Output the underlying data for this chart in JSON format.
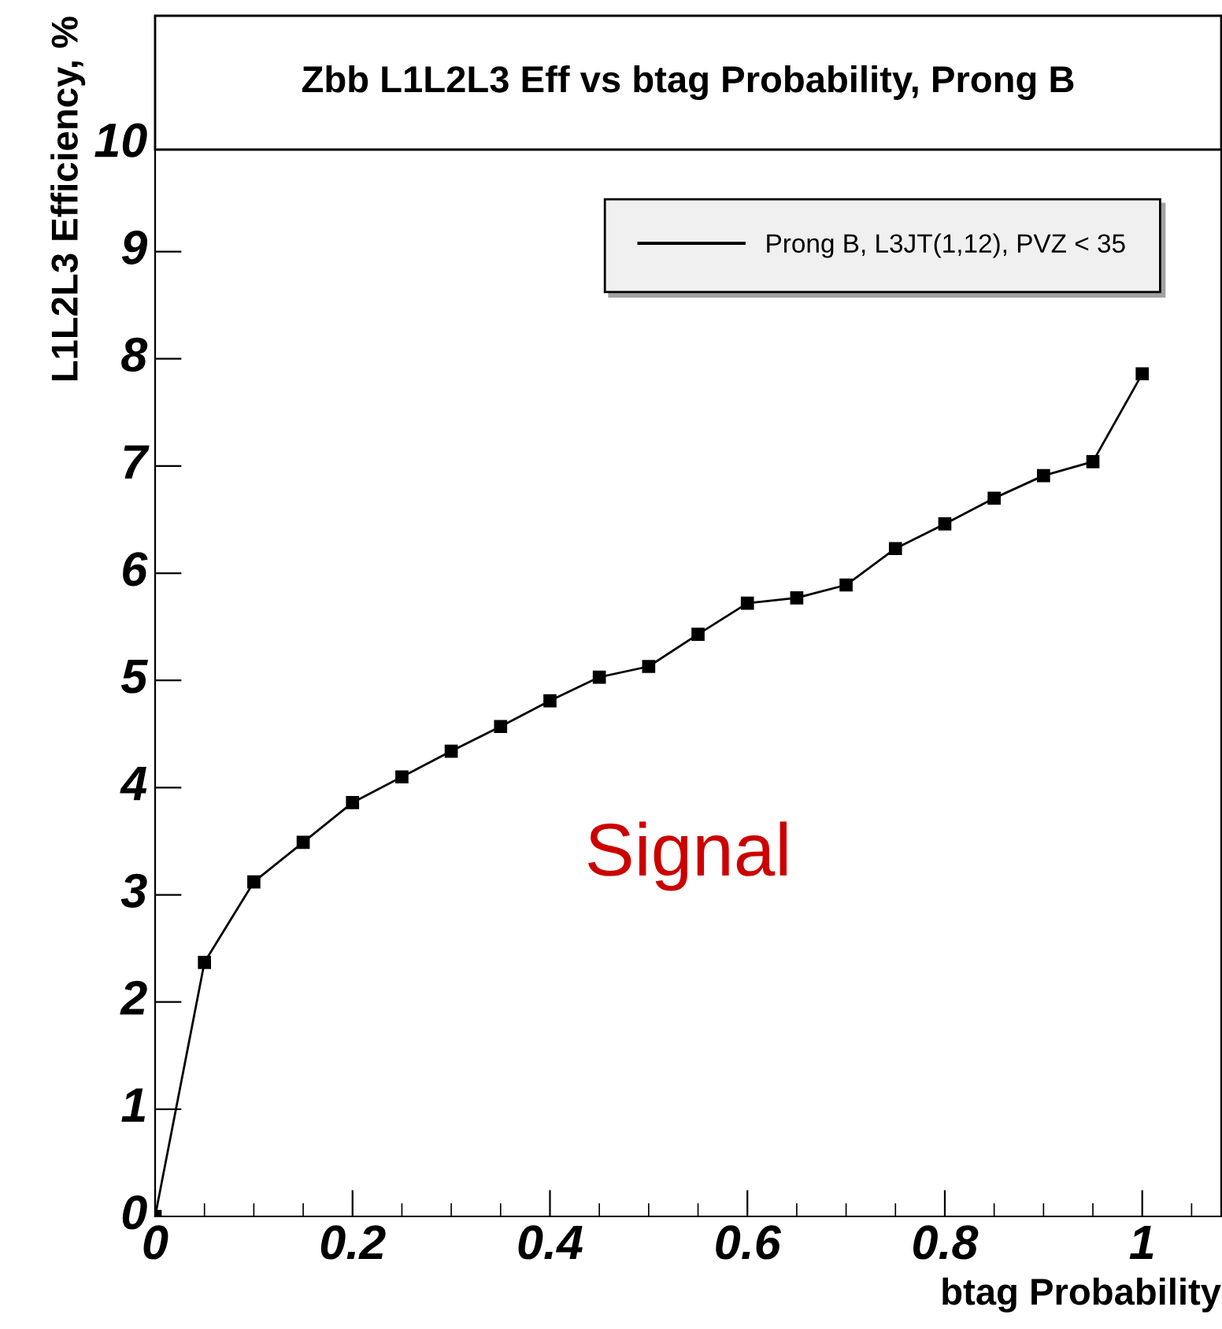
{
  "chart_data": {
    "type": "line",
    "title": "Zbb L1L2L3 Eff vs btag Probability, Prong B",
    "xlabel": "btag Probability",
    "ylabel": "L1L2L3 Efficiency, %",
    "x": [
      0,
      0.05,
      0.1,
      0.15,
      0.2,
      0.25,
      0.3,
      0.35,
      0.4,
      0.45,
      0.5,
      0.55,
      0.6,
      0.65,
      0.7,
      0.75,
      0.8,
      0.85,
      0.9,
      0.95,
      1.0
    ],
    "series": [
      {
        "name": "Prong B, L3JT(1,12), PVZ < 35",
        "color": "#000000",
        "values": [
          0,
          2.37,
          3.12,
          3.49,
          3.86,
          4.1,
          4.34,
          4.57,
          4.81,
          5.03,
          5.13,
          5.43,
          5.72,
          5.77,
          5.89,
          6.23,
          6.46,
          6.7,
          6.91,
          7.04,
          7.86
        ]
      }
    ],
    "xlim": [
      0,
      1.08
    ],
    "ylim": [
      0,
      11.2
    ],
    "xticks": [
      0,
      0.2,
      0.4,
      0.6,
      0.8,
      1
    ],
    "yticks": [
      0,
      1,
      2,
      3,
      4,
      5,
      6,
      7,
      8,
      9,
      10
    ],
    "annotations": [
      "Signal"
    ],
    "marker": "square",
    "line_style": "solid",
    "legend": "top right",
    "grid": false
  }
}
